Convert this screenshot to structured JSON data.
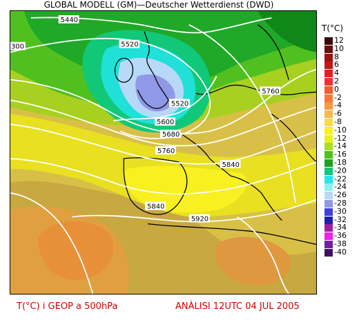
{
  "title": "GLOBAL MODELL (GM)—Deutscher Wetterdienst (DWD)",
  "legend": {
    "title": "T(°C)",
    "entries": [
      {
        "label": "12",
        "color": "#3a0a0a"
      },
      {
        "label": "10",
        "color": "#6a1010"
      },
      {
        "label": "8",
        "color": "#9a1212"
      },
      {
        "label": "6",
        "color": "#c81414"
      },
      {
        "label": "4",
        "color": "#e02020"
      },
      {
        "label": "2",
        "color": "#f03030"
      },
      {
        "label": "0",
        "color": "#f85a2a"
      },
      {
        "label": "-2",
        "color": "#f8783a"
      },
      {
        "label": "-4",
        "color": "#f8983a"
      },
      {
        "label": "-6",
        "color": "#f8b850"
      },
      {
        "label": "-8",
        "color": "#f8d850"
      },
      {
        "label": "-10",
        "color": "#f8f020"
      },
      {
        "label": "-12",
        "color": "#e8f020"
      },
      {
        "label": "-14",
        "color": "#a8e020"
      },
      {
        "label": "-16",
        "color": "#50c020"
      },
      {
        "label": "-18",
        "color": "#20a020"
      },
      {
        "label": "-20",
        "color": "#10c878"
      },
      {
        "label": "-22",
        "color": "#20e8e8"
      },
      {
        "label": "-24",
        "color": "#90f0f0"
      },
      {
        "label": "-26",
        "color": "#b8d8f8"
      },
      {
        "label": "-28",
        "color": "#9098e8"
      },
      {
        "label": "-30",
        "color": "#4040e0"
      },
      {
        "label": "-32",
        "color": "#2020b0"
      },
      {
        "label": "-34",
        "color": "#a020a0"
      },
      {
        "label": "-36",
        "color": "#f020f0"
      },
      {
        "label": "-38",
        "color": "#7020a0"
      },
      {
        "label": "-40",
        "color": "#401060"
      }
    ]
  },
  "contour_labels": [
    "5440",
    "5520",
    "5520",
    "5600",
    "5680",
    "5760",
    "5760",
    "5840",
    "5840",
    "5920",
    "300"
  ],
  "footer": {
    "left": "T(°C) i GEOP a 500hPa",
    "right": "ANÀLISI 12UTC 04 JUL 2005"
  }
}
